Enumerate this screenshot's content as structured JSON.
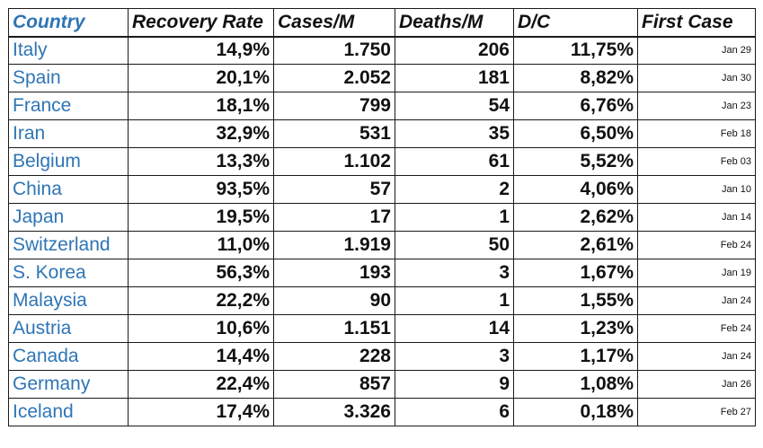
{
  "chart_data": {
    "type": "table",
    "columns": [
      "Country",
      "Recovery Rate",
      "Cases/M",
      "Deaths/M",
      "D/C",
      "First Case"
    ],
    "rows": [
      [
        "Italy",
        "14,9%",
        "1.750",
        "206",
        "11,75%",
        "Jan 29"
      ],
      [
        "Spain",
        "20,1%",
        "2.052",
        "181",
        "8,82%",
        "Jan 30"
      ],
      [
        "France",
        "18,1%",
        "799",
        "54",
        "6,76%",
        "Jan 23"
      ],
      [
        "Iran",
        "32,9%",
        "531",
        "35",
        "6,50%",
        "Feb 18"
      ],
      [
        "Belgium",
        "13,3%",
        "1.102",
        "61",
        "5,52%",
        "Feb 03"
      ],
      [
        "China",
        "93,5%",
        "57",
        "2",
        "4,06%",
        "Jan 10"
      ],
      [
        "Japan",
        "19,5%",
        "17",
        "1",
        "2,62%",
        "Jan 14"
      ],
      [
        "Switzerland",
        "11,0%",
        "1.919",
        "50",
        "2,61%",
        "Feb 24"
      ],
      [
        "S. Korea",
        "56,3%",
        "193",
        "3",
        "1,67%",
        "Jan 19"
      ],
      [
        "Malaysia",
        "22,2%",
        "90",
        "1",
        "1,55%",
        "Jan 24"
      ],
      [
        "Austria",
        "10,6%",
        "1.151",
        "14",
        "1,23%",
        "Feb 24"
      ],
      [
        "Canada",
        "14,4%",
        "228",
        "3",
        "1,17%",
        "Jan 24"
      ],
      [
        "Germany",
        "22,4%",
        "857",
        "9",
        "1,08%",
        "Jan 26"
      ],
      [
        "Iceland",
        "17,4%",
        "3.326",
        "6",
        "0,18%",
        "Feb 27"
      ]
    ]
  },
  "colors": {
    "country_text": "#2e75b6",
    "body_text": "#111111",
    "grid": "#1a1a1a",
    "background": "#ffffff"
  }
}
